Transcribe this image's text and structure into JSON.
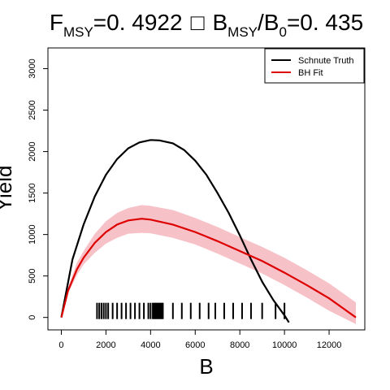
{
  "title": {
    "f_symbol": "F",
    "f_sub": "MSY",
    "f_value": "=0. 4922",
    "separator": "□",
    "b_symbol": "B",
    "b_sub": "MSY",
    "b0_prefix": "/B",
    "b0_sub": "0",
    "b_value": "=0. 435"
  },
  "chart_data": {
    "type": "line",
    "xlabel": "B",
    "ylabel": "Yield",
    "xlim": [
      -600,
      13600
    ],
    "ylim": [
      -150,
      3250
    ],
    "xticks": [
      0,
      2000,
      4000,
      6000,
      8000,
      10000,
      12000
    ],
    "yticks": [
      0,
      500,
      1000,
      1500,
      2000,
      2500,
      3000
    ],
    "legend_position": "top-right",
    "series": [
      {
        "name": "Schnute Truth",
        "color": "#000000",
        "x": [
          0,
          500,
          1000,
          1500,
          2000,
          2500,
          3000,
          3500,
          4000,
          4400,
          5000,
          5500,
          6000,
          6500,
          7000,
          7500,
          8000,
          8500,
          9000,
          9500,
          10000,
          10200
        ],
        "y": [
          0,
          700,
          1120,
          1460,
          1720,
          1910,
          2040,
          2110,
          2140,
          2135,
          2100,
          2020,
          1890,
          1720,
          1500,
          1260,
          990,
          700,
          430,
          210,
          25,
          -60
        ]
      },
      {
        "name": "BH Fit",
        "color": "#dd0000",
        "x": [
          0,
          300,
          700,
          1000,
          1500,
          2000,
          2500,
          3000,
          3600,
          4000,
          5000,
          6000,
          7000,
          8000,
          9000,
          10000,
          11000,
          12000,
          13200
        ],
        "y": [
          0,
          320,
          580,
          720,
          900,
          1030,
          1120,
          1170,
          1190,
          1180,
          1120,
          1030,
          920,
          800,
          680,
          540,
          390,
          230,
          0
        ],
        "band_lower": [
          0,
          290,
          510,
          640,
          780,
          890,
          960,
          1010,
          1020,
          1015,
          960,
          880,
          770,
          650,
          530,
          390,
          240,
          80,
          -80
        ],
        "band_upper": [
          0,
          360,
          660,
          800,
          1010,
          1160,
          1260,
          1320,
          1355,
          1345,
          1295,
          1200,
          1090,
          970,
          850,
          720,
          570,
          410,
          180
        ],
        "band_color": "#f7c1c8"
      }
    ],
    "rug_x": [
      1600,
      1700,
      1800,
      1900,
      2000,
      2100,
      2300,
      2500,
      2700,
      2900,
      3100,
      3300,
      3500,
      3700,
      3900,
      4000,
      4100,
      4150,
      4200,
      4250,
      4300,
      4350,
      4400,
      4450,
      4500,
      4550,
      5000,
      5400,
      5800,
      6200,
      6600,
      6900,
      7300,
      7700,
      8100,
      8500,
      9000,
      9600,
      10000
    ]
  }
}
